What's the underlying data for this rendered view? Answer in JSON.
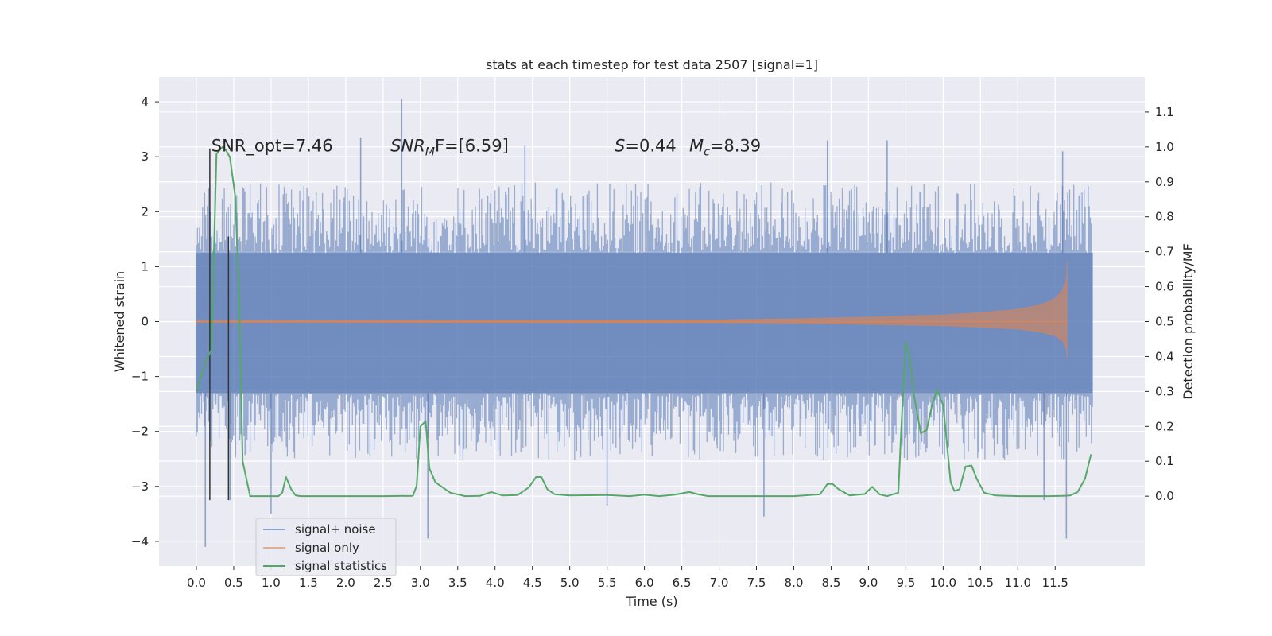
{
  "chart_data": {
    "type": "line",
    "title": "stats at each timestep for test data 2507 [signal=1]",
    "xlabel": "Time (s)",
    "ylabel": "Whitened strain",
    "y2label": "Detection probability/MF",
    "xlim": [
      -0.5,
      12.7
    ],
    "ylim": [
      -4.45,
      4.45
    ],
    "y2lim": [
      -0.2,
      1.2
    ],
    "xticks": [
      0.0,
      0.5,
      1.0,
      1.5,
      2.0,
      2.5,
      3.0,
      3.5,
      4.0,
      4.5,
      5.0,
      5.5,
      6.0,
      6.5,
      7.0,
      7.5,
      8.0,
      8.5,
      9.0,
      9.5,
      10.0,
      10.5,
      11.0,
      11.5
    ],
    "xtick_labels": [
      "0.0",
      "0.5",
      "1.0",
      "1.5",
      "2.0",
      "2.5",
      "3.0",
      "3.5",
      "4.0",
      "4.5",
      "5.0",
      "5.5",
      "6.0",
      "6.5",
      "7.0",
      "7.5",
      "8.0",
      "8.5",
      "9.0",
      "9.5",
      "10.0",
      "10.5",
      "11.0",
      "11.5"
    ],
    "yticks": [
      4,
      3,
      2,
      1,
      0,
      -1,
      -2,
      -3,
      -4
    ],
    "ytick_labels": [
      "4",
      "3",
      "2",
      "1",
      "0",
      "−1",
      "−2",
      "−3",
      "−4"
    ],
    "y2ticks": [
      1.1,
      1.0,
      0.9,
      0.8,
      0.7,
      0.6,
      0.5,
      0.4,
      0.3,
      0.2,
      0.1,
      0.0
    ],
    "y2tick_labels": [
      "1.1",
      "1.0",
      "0.9",
      "0.8",
      "0.7",
      "0.6",
      "0.5",
      "0.4",
      "0.3",
      "0.2",
      "0.1",
      "0.0"
    ],
    "grid": true,
    "legend_position": "lower-left",
    "annotations": [
      {
        "id": "snr-opt",
        "text": "SNR_opt=7.46",
        "x": 0.2,
        "y": 3.1
      },
      {
        "id": "snr-mf",
        "text": "SNR",
        "sub": "M",
        "rest": "F=[6.59]",
        "x": 2.6,
        "y": 3.1
      },
      {
        "id": "spin",
        "text": "S",
        "rest": "=0.44",
        "x": 5.6,
        "y": 3.1
      },
      {
        "id": "chirp-mass",
        "text": "M",
        "sub": "c",
        "rest": "=8.39",
        "x": 6.6,
        "y": 3.1
      }
    ],
    "vlines": [
      {
        "x": 0.18,
        "ymin": -3.25,
        "ymax": 3.15
      },
      {
        "x": 0.43,
        "ymin": -3.25,
        "ymax": 1.55
      }
    ],
    "series": [
      {
        "name": "signal+ noise",
        "color": "#4c72b0",
        "axis": "left",
        "style": "band",
        "x_range": [
          0.0,
          12.0
        ],
        "core": [
          -1.3,
          1.25
        ],
        "upper_typical": 2.2,
        "lower_typical": -2.2,
        "spikes": [
          [
            0.12,
            -4.1
          ],
          [
            0.45,
            -3.25
          ],
          [
            1.0,
            -3.5
          ],
          [
            2.75,
            4.05
          ],
          [
            3.1,
            -3.95
          ],
          [
            5.5,
            -3.35
          ],
          [
            7.6,
            -3.55
          ],
          [
            11.35,
            -3.25
          ],
          [
            11.65,
            -3.95
          ],
          [
            2.2,
            3.35
          ],
          [
            4.4,
            3.2
          ],
          [
            8.45,
            3.3
          ],
          [
            9.25,
            3.3
          ],
          [
            11.6,
            3.1
          ]
        ]
      },
      {
        "name": "signal only",
        "color": "#dd8452",
        "axis": "left",
        "style": "chirp",
        "x": [
          0.0,
          7.0,
          8.0,
          9.0,
          10.0,
          10.5,
          11.0,
          11.3,
          11.5,
          11.6,
          11.65,
          11.66
        ],
        "env": [
          0.02,
          0.03,
          0.05,
          0.08,
          0.12,
          0.16,
          0.22,
          0.3,
          0.42,
          0.58,
          0.8,
          1.1
        ]
      },
      {
        "name": "signal statistics",
        "color": "#55a868",
        "axis": "right",
        "style": "line",
        "x": [
          0.0,
          0.12,
          0.2,
          0.27,
          0.35,
          0.4,
          0.45,
          0.52,
          0.57,
          0.62,
          0.72,
          1.0,
          1.1,
          1.15,
          1.2,
          1.27,
          1.33,
          1.4,
          1.6,
          2.0,
          2.5,
          2.9,
          2.95,
          3.0,
          3.07,
          3.12,
          3.2,
          3.4,
          3.6,
          3.8,
          3.95,
          4.1,
          4.3,
          4.45,
          4.55,
          4.62,
          4.7,
          4.8,
          5.0,
          5.5,
          5.8,
          6.0,
          6.2,
          6.4,
          6.6,
          6.72,
          6.85,
          7.0,
          7.5,
          8.0,
          8.35,
          8.45,
          8.52,
          8.6,
          8.75,
          8.95,
          9.05,
          9.15,
          9.25,
          9.4,
          9.44,
          9.5,
          9.56,
          9.6,
          9.7,
          9.78,
          9.85,
          9.92,
          10.0,
          10.1,
          10.15,
          10.22,
          10.3,
          10.38,
          10.45,
          10.55,
          10.7,
          11.0,
          11.4,
          11.6,
          11.7,
          11.8,
          11.9,
          11.98
        ],
        "y": [
          0.3,
          0.38,
          0.42,
          0.98,
          1.0,
          0.99,
          0.97,
          0.86,
          0.6,
          0.1,
          0.0,
          0.0,
          0.0,
          0.01,
          0.055,
          0.02,
          0.002,
          0.0,
          0.0,
          0.0,
          0.0,
          0.001,
          0.03,
          0.2,
          0.215,
          0.08,
          0.04,
          0.01,
          0.0,
          0.001,
          0.012,
          0.002,
          0.003,
          0.025,
          0.055,
          0.055,
          0.02,
          0.005,
          0.002,
          0.003,
          0.0,
          0.004,
          0.0,
          0.004,
          0.012,
          0.005,
          0.0,
          0.0,
          0.0,
          0.0,
          0.005,
          0.035,
          0.035,
          0.02,
          0.002,
          0.006,
          0.027,
          0.005,
          0.0,
          0.01,
          0.2,
          0.44,
          0.395,
          0.3,
          0.18,
          0.19,
          0.26,
          0.305,
          0.26,
          0.04,
          0.015,
          0.02,
          0.085,
          0.088,
          0.05,
          0.01,
          0.002,
          0.0,
          0.0,
          0.001,
          0.002,
          0.012,
          0.05,
          0.12
        ]
      }
    ]
  }
}
